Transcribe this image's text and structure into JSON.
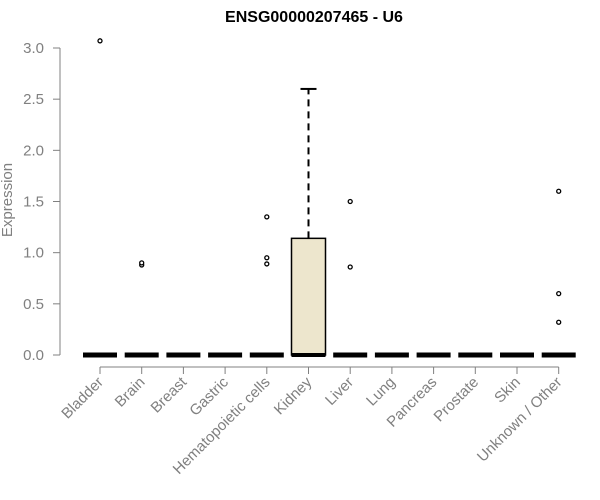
{
  "chart_data": {
    "type": "boxplot",
    "title": "ENSG00000207465 - U6",
    "xlabel": "",
    "ylabel": "Expression",
    "ylim": [
      0,
      3.0
    ],
    "yticks": [
      "0.0",
      "0.5",
      "1.0",
      "1.5",
      "2.0",
      "2.5",
      "3.0"
    ],
    "categories": [
      "Bladder",
      "Brain",
      "Breast",
      "Gastric",
      "Hematopoietic cells",
      "Kidney",
      "Liver",
      "Lung",
      "Pancreas",
      "Prostate",
      "Skin",
      "Unknown / Other"
    ],
    "boxes": [
      {
        "category": "Bladder",
        "q1": 0,
        "median": 0,
        "q3": 0,
        "whisker_low": 0,
        "whisker_high": 0,
        "outliers": [
          3.07
        ]
      },
      {
        "category": "Brain",
        "q1": 0,
        "median": 0,
        "q3": 0,
        "whisker_low": 0,
        "whisker_high": 0,
        "outliers": [
          0.88,
          0.9
        ]
      },
      {
        "category": "Breast",
        "q1": 0,
        "median": 0,
        "q3": 0,
        "whisker_low": 0,
        "whisker_high": 0,
        "outliers": []
      },
      {
        "category": "Gastric",
        "q1": 0,
        "median": 0,
        "q3": 0,
        "whisker_low": 0,
        "whisker_high": 0,
        "outliers": []
      },
      {
        "category": "Hematopoietic cells",
        "q1": 0,
        "median": 0,
        "q3": 0,
        "whisker_low": 0,
        "whisker_high": 0,
        "outliers": [
          1.35,
          0.95,
          0.89
        ]
      },
      {
        "category": "Kidney",
        "q1": 0,
        "median": 0,
        "q3": 1.14,
        "whisker_low": 0,
        "whisker_high": 2.6,
        "outliers": []
      },
      {
        "category": "Liver",
        "q1": 0,
        "median": 0,
        "q3": 0,
        "whisker_low": 0,
        "whisker_high": 0,
        "outliers": [
          1.5,
          0.86
        ]
      },
      {
        "category": "Lung",
        "q1": 0,
        "median": 0,
        "q3": 0,
        "whisker_low": 0,
        "whisker_high": 0,
        "outliers": []
      },
      {
        "category": "Pancreas",
        "q1": 0,
        "median": 0,
        "q3": 0,
        "whisker_low": 0,
        "whisker_high": 0,
        "outliers": []
      },
      {
        "category": "Prostate",
        "q1": 0,
        "median": 0,
        "q3": 0,
        "whisker_low": 0,
        "whisker_high": 0,
        "outliers": []
      },
      {
        "category": "Skin",
        "q1": 0,
        "median": 0,
        "q3": 0,
        "whisker_low": 0,
        "whisker_high": 0,
        "outliers": []
      },
      {
        "category": "Unknown / Other",
        "q1": 0,
        "median": 0,
        "q3": 0,
        "whisker_low": 0,
        "whisker_high": 0,
        "outliers": [
          1.6,
          0.6,
          0.32
        ]
      }
    ],
    "grid": false,
    "legend": "none",
    "colors": {
      "box_fill": "#ede6cd",
      "box_stroke": "#000000",
      "axis": "#808080",
      "text": "#808080",
      "title": "#000000"
    }
  }
}
